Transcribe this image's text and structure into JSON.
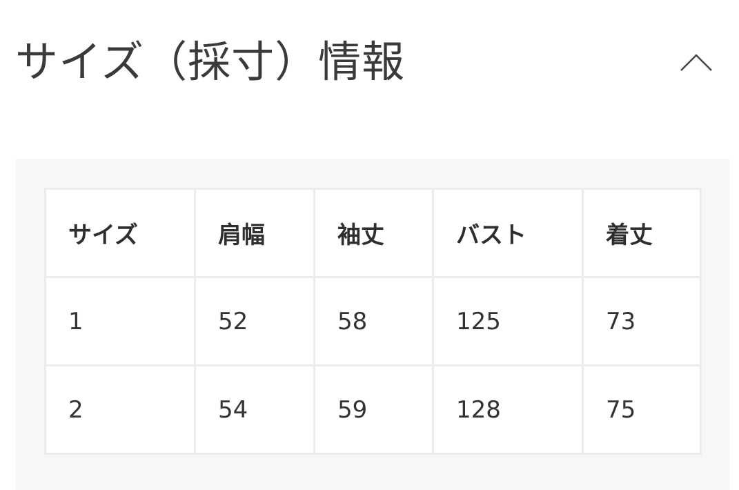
{
  "section": {
    "title": "サイズ（採寸）情報",
    "toggle_icon": "chevron-up-icon",
    "expanded": true
  },
  "table": {
    "headers": [
      "サイズ",
      "肩幅",
      "袖丈",
      "バスト",
      "着丈"
    ],
    "rows": [
      [
        "1",
        "52",
        "58",
        "125",
        "73"
      ],
      [
        "2",
        "54",
        "59",
        "128",
        "75"
      ]
    ]
  }
}
